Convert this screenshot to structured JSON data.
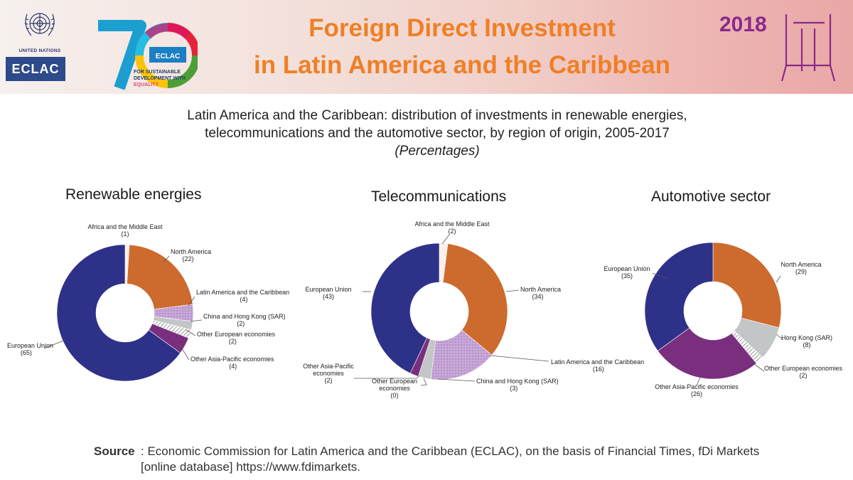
{
  "header": {
    "un_label": "UNITED NATIONS",
    "eclac_label": "ECLAC",
    "seventy_badge": "ECLAC",
    "seventy_line1": "FOR SUSTAINABLE",
    "seventy_line2": "DEVELOPMENT WITH",
    "seventy_line2_em": "EQUALITY",
    "title_line1": "Foreign Direct Investment",
    "title_line2": "in Latin America and the Caribbean",
    "year": "2018"
  },
  "subtitle": {
    "line1": "Latin America and the Caribbean: distribution of investments in renewable energies,",
    "line2": "telecommunications and the automotive sector, by region of origin, 2005-2017",
    "units": "(Percentages)"
  },
  "colors": {
    "north_america": "#cd6a2e",
    "latin_america": "#c8a8d8",
    "china_hk": "#c2c6c6",
    "hong_kong": "#c2c6c6",
    "other_european": "#ffffff",
    "other_asia": "#7a2f7e",
    "european_union": "#2e3188",
    "africa": "#f0b594"
  },
  "chart_data": [
    {
      "type": "pie",
      "title": "Renewable energies",
      "slices": [
        {
          "name": "Africa and the Middle East",
          "value": 1,
          "label": "(1)",
          "key": "africa"
        },
        {
          "name": "North America",
          "value": 22,
          "label": "(22)",
          "key": "north_america"
        },
        {
          "name": "Latin America and the Caribbean",
          "value": 4,
          "label": "(4)",
          "key": "latin_america"
        },
        {
          "name": "China and Hong Kong (SAR)",
          "value": 2,
          "label": "(2)",
          "key": "china_hk"
        },
        {
          "name": "Other European economies",
          "value": 2,
          "label": "(2)",
          "key": "other_european"
        },
        {
          "name": "Other Asia-Pacific economies",
          "value": 4,
          "label": "(4)",
          "key": "other_asia"
        },
        {
          "name": "European Union",
          "value": 65,
          "label": "(65)",
          "key": "european_union"
        }
      ]
    },
    {
      "type": "pie",
      "title": "Telecommunications",
      "slices": [
        {
          "name": "Africa and the Middle East",
          "value": 2,
          "label": "(2)",
          "key": "africa"
        },
        {
          "name": "North America",
          "value": 34,
          "label": "(34)",
          "key": "north_america"
        },
        {
          "name": "Latin America and the Caribbean",
          "value": 16,
          "label": "(16)",
          "key": "latin_america"
        },
        {
          "name": "China and Hong Kong (SAR)",
          "value": 3,
          "label": "(3)",
          "key": "china_hk"
        },
        {
          "name": "Other European economies",
          "value": 0,
          "label": "(0)",
          "key": "other_european"
        },
        {
          "name": "Other Asia-Pacific economies",
          "value": 2,
          "label": "(2)",
          "key": "other_asia"
        },
        {
          "name": "European Union",
          "value": 43,
          "label": "(43)",
          "key": "european_union"
        }
      ]
    },
    {
      "type": "pie",
      "title": "Automotive sector",
      "slices": [
        {
          "name": "North America",
          "value": 29,
          "label": "(29)",
          "key": "north_america"
        },
        {
          "name": "Hong Kong (SAR)",
          "value": 8,
          "label": "(8)",
          "key": "hong_kong"
        },
        {
          "name": "Other European economies",
          "value": 2,
          "label": "(2)",
          "key": "other_european"
        },
        {
          "name": "Other Asia-Pacific economies",
          "value": 26,
          "label": "(26)",
          "key": "other_asia"
        },
        {
          "name": "European Union",
          "value": 35,
          "label": "(35)",
          "key": "european_union"
        }
      ]
    }
  ],
  "source": {
    "label": "Source",
    "text": ": Economic Commission for Latin America and the Caribbean (ECLAC), on the basis of Financial Times, fDi Markets [online database] https://www.fdimarkets."
  }
}
